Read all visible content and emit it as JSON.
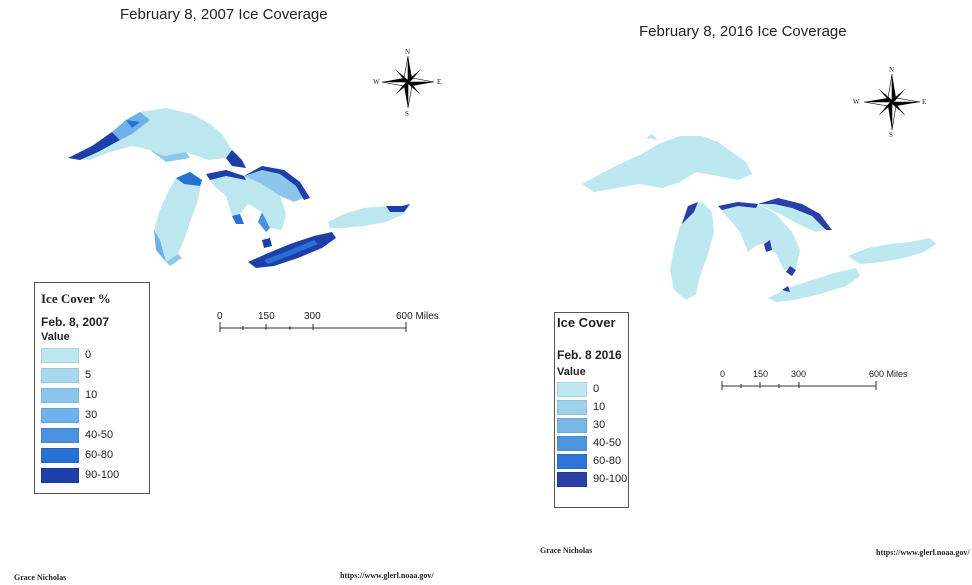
{
  "left": {
    "title": "February 8, 2007 Ice Coverage",
    "legend": {
      "heading": "Ice Cover %",
      "date": "Feb. 8, 2007",
      "value_label": "Value",
      "classes": [
        {
          "label": "0",
          "color": "#bde7ef"
        },
        {
          "label": "5",
          "color": "#a8d8ee"
        },
        {
          "label": "10",
          "color": "#8dc6ec"
        },
        {
          "label": "30",
          "color": "#6fb1ea"
        },
        {
          "label": "40-50",
          "color": "#4b93e1"
        },
        {
          "label": "60-80",
          "color": "#2a6fd4"
        },
        {
          "label": "90-100",
          "color": "#1c3fa8"
        }
      ]
    },
    "scale": {
      "ticks": [
        "0",
        "150",
        "300",
        "600 Miles"
      ]
    },
    "compass": {
      "n": "N",
      "s": "S",
      "e": "E",
      "w": "W"
    },
    "author": "Grace Nicholas",
    "source": "https://www.glerl.noaa.gov/"
  },
  "right": {
    "title": "February 8, 2016 Ice Coverage",
    "legend": {
      "heading": "Ice Cover",
      "date": "Feb. 8 2016",
      "value_label": "Value",
      "classes": [
        {
          "label": "0",
          "color": "#bde8ef"
        },
        {
          "label": "10",
          "color": "#9fd2ea"
        },
        {
          "label": "30",
          "color": "#7ab7e6"
        },
        {
          "label": "40-50",
          "color": "#4f95de"
        },
        {
          "label": "60-80",
          "color": "#2f74d6"
        },
        {
          "label": "90-100",
          "color": "#2a3ea6"
        }
      ]
    },
    "scale": {
      "ticks": [
        "0",
        "150",
        "300",
        "600 Miles"
      ]
    },
    "compass": {
      "n": "N",
      "s": "S",
      "e": "E",
      "w": "W"
    },
    "author": "Grace Nicholas",
    "source": "https://www.glerl.noaa.gov/"
  }
}
